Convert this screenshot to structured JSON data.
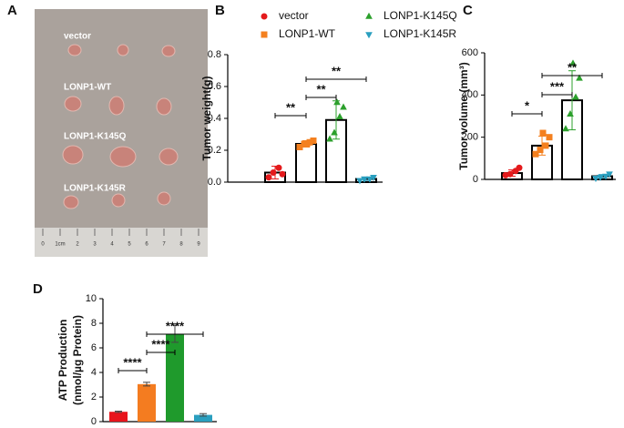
{
  "panel_labels": [
    "A",
    "B",
    "C",
    "D"
  ],
  "photo": {
    "labels": [
      "vector",
      "LONP1-WT",
      "LONP1-K145Q",
      "LONP1-K145R"
    ],
    "ruler": [
      "0",
      "1cm",
      "2",
      "3",
      "4",
      "5",
      "6",
      "7",
      "8",
      "9"
    ]
  },
  "chart_data": [
    {
      "type": "bar-scatter",
      "ylabel": "Tumor weight(g)",
      "ylim": [
        0,
        0.8
      ],
      "yticks": [
        {
          "value": 0,
          "label": "0.0"
        },
        0.2,
        0.4,
        0.6,
        0.8
      ],
      "filled": false,
      "legend": true,
      "series": [
        {
          "name": "vector",
          "color": "#e41a1c",
          "marker": "circle",
          "mean": 0.06,
          "error": 0.04,
          "points": [
            0.03,
            0.06,
            0.09,
            0.05
          ]
        },
        {
          "name": "LONP1-WT",
          "color": "#f4801f",
          "marker": "square",
          "mean": 0.24,
          "error": 0.02,
          "points": [
            0.22,
            0.24,
            0.25,
            0.26,
            0.24
          ]
        },
        {
          "name": "LONP1-K145Q",
          "color": "#2ca02c",
          "marker": "triangle-up",
          "mean": 0.39,
          "error": 0.12,
          "points": [
            0.27,
            0.31,
            0.41,
            0.47,
            0.5
          ]
        },
        {
          "name": "LONP1-K145R",
          "color": "#2a9fbf",
          "marker": "triangle-down",
          "mean": 0.02,
          "error": 0.01,
          "points": [
            0.01,
            0.02,
            0.02,
            0.03
          ]
        }
      ],
      "significance": [
        {
          "from": 0,
          "to": 1,
          "label": "**"
        },
        {
          "from": 1,
          "to": 2,
          "label": "**"
        },
        {
          "from": 1,
          "to": 3,
          "label": "**"
        }
      ]
    },
    {
      "type": "bar-scatter",
      "ylabel": "Tumor volume (mm³)",
      "ylim": [
        0,
        600
      ],
      "yticks": [
        0,
        200,
        400,
        600
      ],
      "filled": false,
      "legend": false,
      "series": [
        {
          "color": "#e41a1c",
          "marker": "circle",
          "mean": 30,
          "error": 15,
          "points": [
            20,
            25,
            40,
            55
          ]
        },
        {
          "color": "#f4801f",
          "marker": "square",
          "mean": 160,
          "error": 45,
          "points": [
            120,
            140,
            160,
            200,
            220
          ]
        },
        {
          "color": "#2ca02c",
          "marker": "triangle-up",
          "mean": 375,
          "error": 140,
          "points": [
            240,
            310,
            390,
            480,
            550
          ]
        },
        {
          "color": "#2a9fbf",
          "marker": "triangle-down",
          "mean": 15,
          "error": 8,
          "points": [
            5,
            10,
            15,
            25
          ]
        }
      ],
      "significance": [
        {
          "from": 0,
          "to": 1,
          "label": "*"
        },
        {
          "from": 1,
          "to": 2,
          "label": "***"
        },
        {
          "from": 1,
          "to": 3,
          "label": "**"
        }
      ]
    },
    {
      "type": "bar-scatter",
      "ylabel": [
        "ATP Production",
        "(nmol/µg Protein)"
      ],
      "ylim": [
        0,
        10
      ],
      "yticks": [
        0,
        2,
        4,
        6,
        8,
        10
      ],
      "filled": true,
      "legend": false,
      "series": [
        {
          "color": "#e8141c",
          "mean": 0.8,
          "error": 0.05
        },
        {
          "color": "#f47c20",
          "mean": 3.05,
          "error": 0.15
        },
        {
          "color": "#1f9a2c",
          "mean": 7.15,
          "error": 0.7
        },
        {
          "color": "#2a9fbf",
          "mean": 0.55,
          "error": 0.1
        }
      ],
      "significance": [
        {
          "from": 0,
          "to": 1,
          "label": "****"
        },
        {
          "from": 1,
          "to": 2,
          "label": "****"
        },
        {
          "from": 1,
          "to": 3,
          "label": "****"
        }
      ]
    }
  ]
}
